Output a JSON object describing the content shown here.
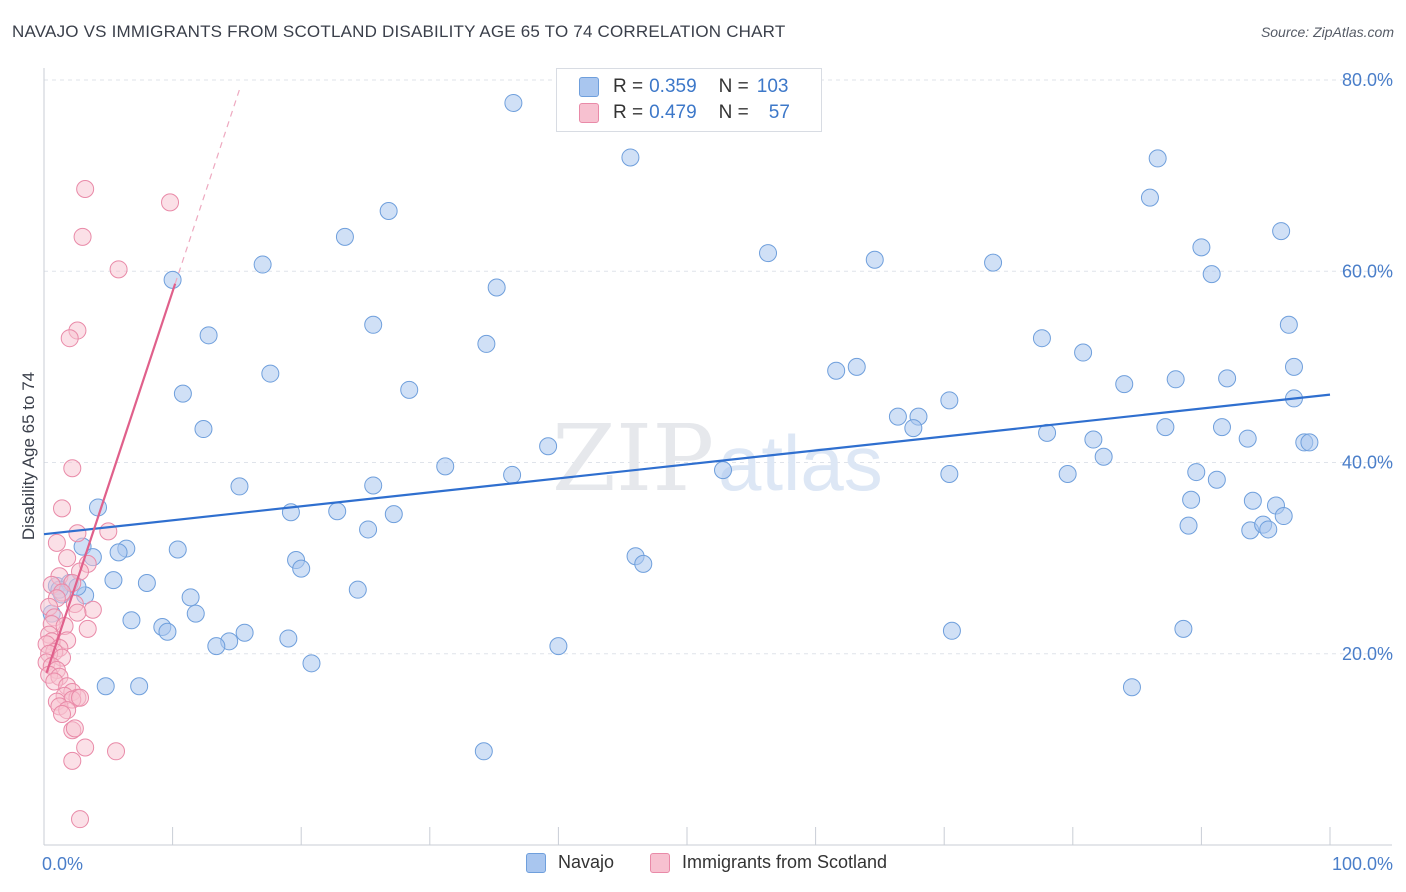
{
  "header": {
    "title": "NAVAJO VS IMMIGRANTS FROM SCOTLAND DISABILITY AGE 65 TO 74 CORRELATION CHART",
    "source": "Source: ZipAtlas.com"
  },
  "watermark": {
    "zip": "ZIP",
    "atlas": "atlas"
  },
  "legend": {
    "rows": [
      {
        "r_label": "R =",
        "r_value": "0.359",
        "n_label": "N =",
        "n_value": "103",
        "color": "#a9c6ef",
        "border": "#6f9fdc"
      },
      {
        "r_label": "R =",
        "r_value": "0.479",
        "n_label": "N =",
        "n_value": "57",
        "color": "#f7c1d0",
        "border": "#e98aa8"
      }
    ]
  },
  "bottom_legend": {
    "items": [
      {
        "label": "Navajo",
        "color": "#a9c6ef",
        "border": "#6f9fdc"
      },
      {
        "label": "Immigrants from Scotland",
        "color": "#f7c1d0",
        "border": "#e98aa8"
      }
    ]
  },
  "chart_data": {
    "type": "scatter",
    "title": "NAVAJO VS IMMIGRANTS FROM SCOTLAND DISABILITY AGE 65 TO 74 CORRELATION CHART",
    "xlabel": "",
    "ylabel": "Disability Age 65 to 74",
    "xlim": [
      0,
      100
    ],
    "ylim": [
      0,
      80
    ],
    "x_tick_labels": [
      "0.0%",
      "100.0%"
    ],
    "y_ticks": [
      20,
      40,
      60,
      80
    ],
    "y_tick_labels": [
      "20.0%",
      "40.0%",
      "60.0%",
      "80.0%"
    ],
    "grid": true,
    "colors": {
      "navajo_fill": "#a9c6ef",
      "navajo_stroke": "#6f9fdc",
      "navajo_line": "#2f6fcf",
      "scot_fill": "#f7c1d0",
      "scot_stroke": "#e98aa8",
      "scot_line": "#e0608b"
    },
    "series": [
      {
        "name": "Navajo",
        "trend": {
          "x": [
            0,
            100
          ],
          "y": [
            32.5,
            47.1
          ]
        },
        "points": [
          [
            36.5,
            77.6
          ],
          [
            45.6,
            71.9
          ],
          [
            86.6,
            71.8
          ],
          [
            86.0,
            67.7
          ],
          [
            26.8,
            66.3
          ],
          [
            23.4,
            63.6
          ],
          [
            56.3,
            61.9
          ],
          [
            10.0,
            59.1
          ],
          [
            17.0,
            60.7
          ],
          [
            64.6,
            61.2
          ],
          [
            73.8,
            60.9
          ],
          [
            90.0,
            62.5
          ],
          [
            90.8,
            59.7
          ],
          [
            96.2,
            64.2
          ],
          [
            35.2,
            58.3
          ],
          [
            25.6,
            54.4
          ],
          [
            12.8,
            53.3
          ],
          [
            34.4,
            52.4
          ],
          [
            77.6,
            53.0
          ],
          [
            80.8,
            51.5
          ],
          [
            96.8,
            54.4
          ],
          [
            97.2,
            50.0
          ],
          [
            17.6,
            49.3
          ],
          [
            28.4,
            47.6
          ],
          [
            10.8,
            47.2
          ],
          [
            61.6,
            49.6
          ],
          [
            63.2,
            50.0
          ],
          [
            84.0,
            48.2
          ],
          [
            88.0,
            48.7
          ],
          [
            92.0,
            48.8
          ],
          [
            70.4,
            46.5
          ],
          [
            66.4,
            44.8
          ],
          [
            68.0,
            44.8
          ],
          [
            67.6,
            43.6
          ],
          [
            97.2,
            46.7
          ],
          [
            12.4,
            43.5
          ],
          [
            39.2,
            41.7
          ],
          [
            78.0,
            43.1
          ],
          [
            81.6,
            42.4
          ],
          [
            87.2,
            43.7
          ],
          [
            91.6,
            43.7
          ],
          [
            93.6,
            42.5
          ],
          [
            98.0,
            42.1
          ],
          [
            98.4,
            42.1
          ],
          [
            31.2,
            39.6
          ],
          [
            82.4,
            40.6
          ],
          [
            36.4,
            38.7
          ],
          [
            52.8,
            39.2
          ],
          [
            70.4,
            38.8
          ],
          [
            79.6,
            38.8
          ],
          [
            89.6,
            39.0
          ],
          [
            91.2,
            38.2
          ],
          [
            15.2,
            37.5
          ],
          [
            25.6,
            37.6
          ],
          [
            89.2,
            36.1
          ],
          [
            94.0,
            36.0
          ],
          [
            95.8,
            35.5
          ],
          [
            96.4,
            34.4
          ],
          [
            19.2,
            34.8
          ],
          [
            22.8,
            34.9
          ],
          [
            27.2,
            34.6
          ],
          [
            4.2,
            35.3
          ],
          [
            25.2,
            33.0
          ],
          [
            89.0,
            33.4
          ],
          [
            93.8,
            32.9
          ],
          [
            94.8,
            33.5
          ],
          [
            95.2,
            33.0
          ],
          [
            3.0,
            31.2
          ],
          [
            6.4,
            31.0
          ],
          [
            10.4,
            30.9
          ],
          [
            5.8,
            30.6
          ],
          [
            3.8,
            30.1
          ],
          [
            46.0,
            30.2
          ],
          [
            46.6,
            29.4
          ],
          [
            19.6,
            29.8
          ],
          [
            20.0,
            28.9
          ],
          [
            1.0,
            27.1
          ],
          [
            2.0,
            27.4
          ],
          [
            5.4,
            27.7
          ],
          [
            8.0,
            27.4
          ],
          [
            24.4,
            26.7
          ],
          [
            1.4,
            26.2
          ],
          [
            3.2,
            26.1
          ],
          [
            11.4,
            25.9
          ],
          [
            11.8,
            24.2
          ],
          [
            6.8,
            23.5
          ],
          [
            9.2,
            22.8
          ],
          [
            9.6,
            22.3
          ],
          [
            15.6,
            22.2
          ],
          [
            19.0,
            21.6
          ],
          [
            14.4,
            21.3
          ],
          [
            13.4,
            20.8
          ],
          [
            40.0,
            20.8
          ],
          [
            70.6,
            22.4
          ],
          [
            88.6,
            22.6
          ],
          [
            20.8,
            19.0
          ],
          [
            4.8,
            16.6
          ],
          [
            7.4,
            16.6
          ],
          [
            84.6,
            16.5
          ],
          [
            34.2,
            9.8
          ],
          [
            1.2,
            26.7
          ],
          [
            2.6,
            27.0
          ],
          [
            0.6,
            24.2
          ]
        ]
      },
      {
        "name": "Immigrants from Scotland",
        "trend": {
          "x": [
            0.2,
            10.2
          ],
          "y": [
            18.0,
            58.7
          ]
        },
        "trend_extension": {
          "x": [
            10.2,
            15.3
          ],
          "y": [
            58.7,
            79.4
          ]
        },
        "points": [
          [
            3.2,
            68.6
          ],
          [
            9.8,
            67.2
          ],
          [
            3.0,
            63.6
          ],
          [
            5.8,
            60.2
          ],
          [
            2.6,
            53.8
          ],
          [
            2.0,
            53.0
          ],
          [
            2.2,
            39.4
          ],
          [
            1.4,
            35.2
          ],
          [
            5.0,
            32.8
          ],
          [
            1.0,
            31.6
          ],
          [
            2.6,
            32.6
          ],
          [
            1.8,
            30.0
          ],
          [
            3.4,
            29.4
          ],
          [
            2.8,
            28.6
          ],
          [
            1.2,
            28.1
          ],
          [
            0.6,
            27.2
          ],
          [
            2.2,
            27.4
          ],
          [
            1.4,
            26.4
          ],
          [
            1.0,
            25.8
          ],
          [
            2.4,
            25.2
          ],
          [
            0.4,
            24.9
          ],
          [
            3.8,
            24.6
          ],
          [
            2.6,
            24.3
          ],
          [
            0.8,
            23.8
          ],
          [
            0.6,
            23.1
          ],
          [
            1.6,
            22.9
          ],
          [
            3.4,
            22.6
          ],
          [
            0.4,
            22.0
          ],
          [
            1.8,
            21.4
          ],
          [
            0.6,
            21.3
          ],
          [
            0.2,
            21.0
          ],
          [
            1.2,
            20.6
          ],
          [
            0.8,
            20.2
          ],
          [
            0.4,
            20.0
          ],
          [
            1.4,
            19.6
          ],
          [
            0.2,
            19.1
          ],
          [
            0.6,
            18.7
          ],
          [
            1.0,
            18.3
          ],
          [
            0.4,
            17.8
          ],
          [
            1.2,
            17.6
          ],
          [
            0.8,
            17.1
          ],
          [
            1.8,
            16.6
          ],
          [
            2.2,
            16.0
          ],
          [
            1.6,
            15.6
          ],
          [
            2.6,
            15.4
          ],
          [
            2.2,
            15.2
          ],
          [
            2.8,
            15.4
          ],
          [
            1.0,
            15.0
          ],
          [
            1.2,
            14.5
          ],
          [
            1.8,
            14.1
          ],
          [
            1.4,
            13.7
          ],
          [
            2.2,
            12.0
          ],
          [
            3.2,
            10.2
          ],
          [
            5.6,
            9.8
          ],
          [
            2.2,
            8.8
          ],
          [
            2.8,
            2.7
          ],
          [
            2.4,
            12.2
          ]
        ]
      }
    ]
  }
}
